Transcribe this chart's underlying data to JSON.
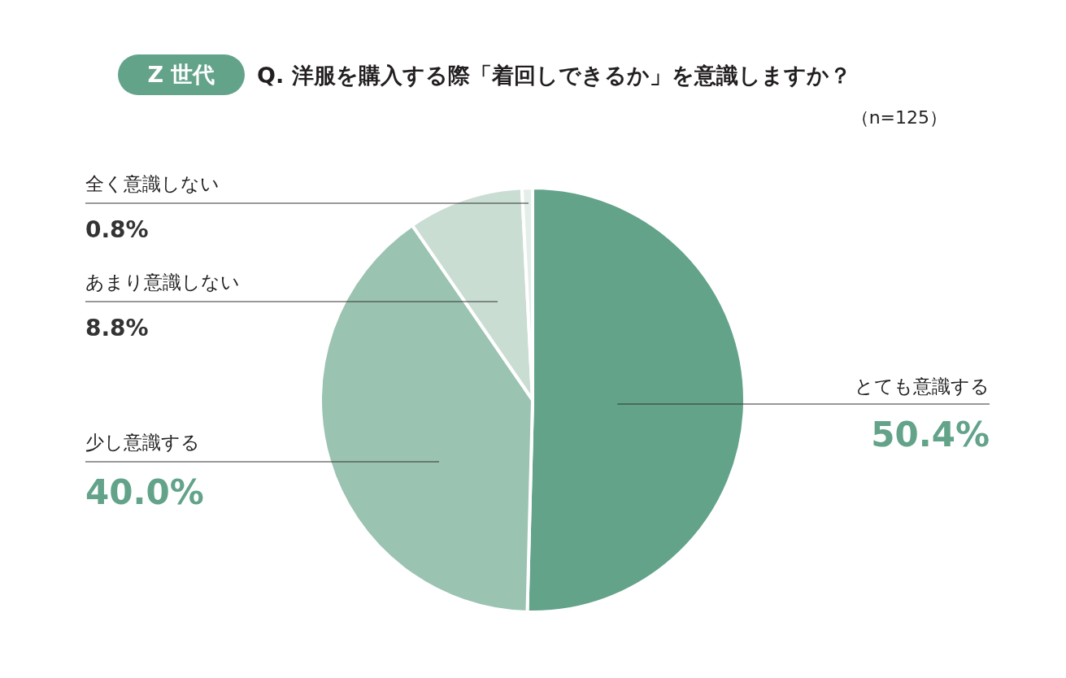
{
  "chart_data": {
    "type": "pie",
    "title": "Q. 洋服を購入する際「着回しできるか」を意識しますか？",
    "subtitle": "（n=125）",
    "annotations": [
      "Z 世代"
    ],
    "categories": [
      "とても意識する",
      "少し意識する",
      "あまり意識しない",
      "全く意識しない"
    ],
    "values": [
      50.4,
      40.0,
      8.8,
      0.8
    ],
    "colors": [
      "#62a38a",
      "#9bc3b1",
      "#c9ddd3",
      "#e4eee9"
    ],
    "value_labels": [
      "50.4%",
      "40.0%",
      "8.8%",
      "0.8%"
    ]
  }
}
